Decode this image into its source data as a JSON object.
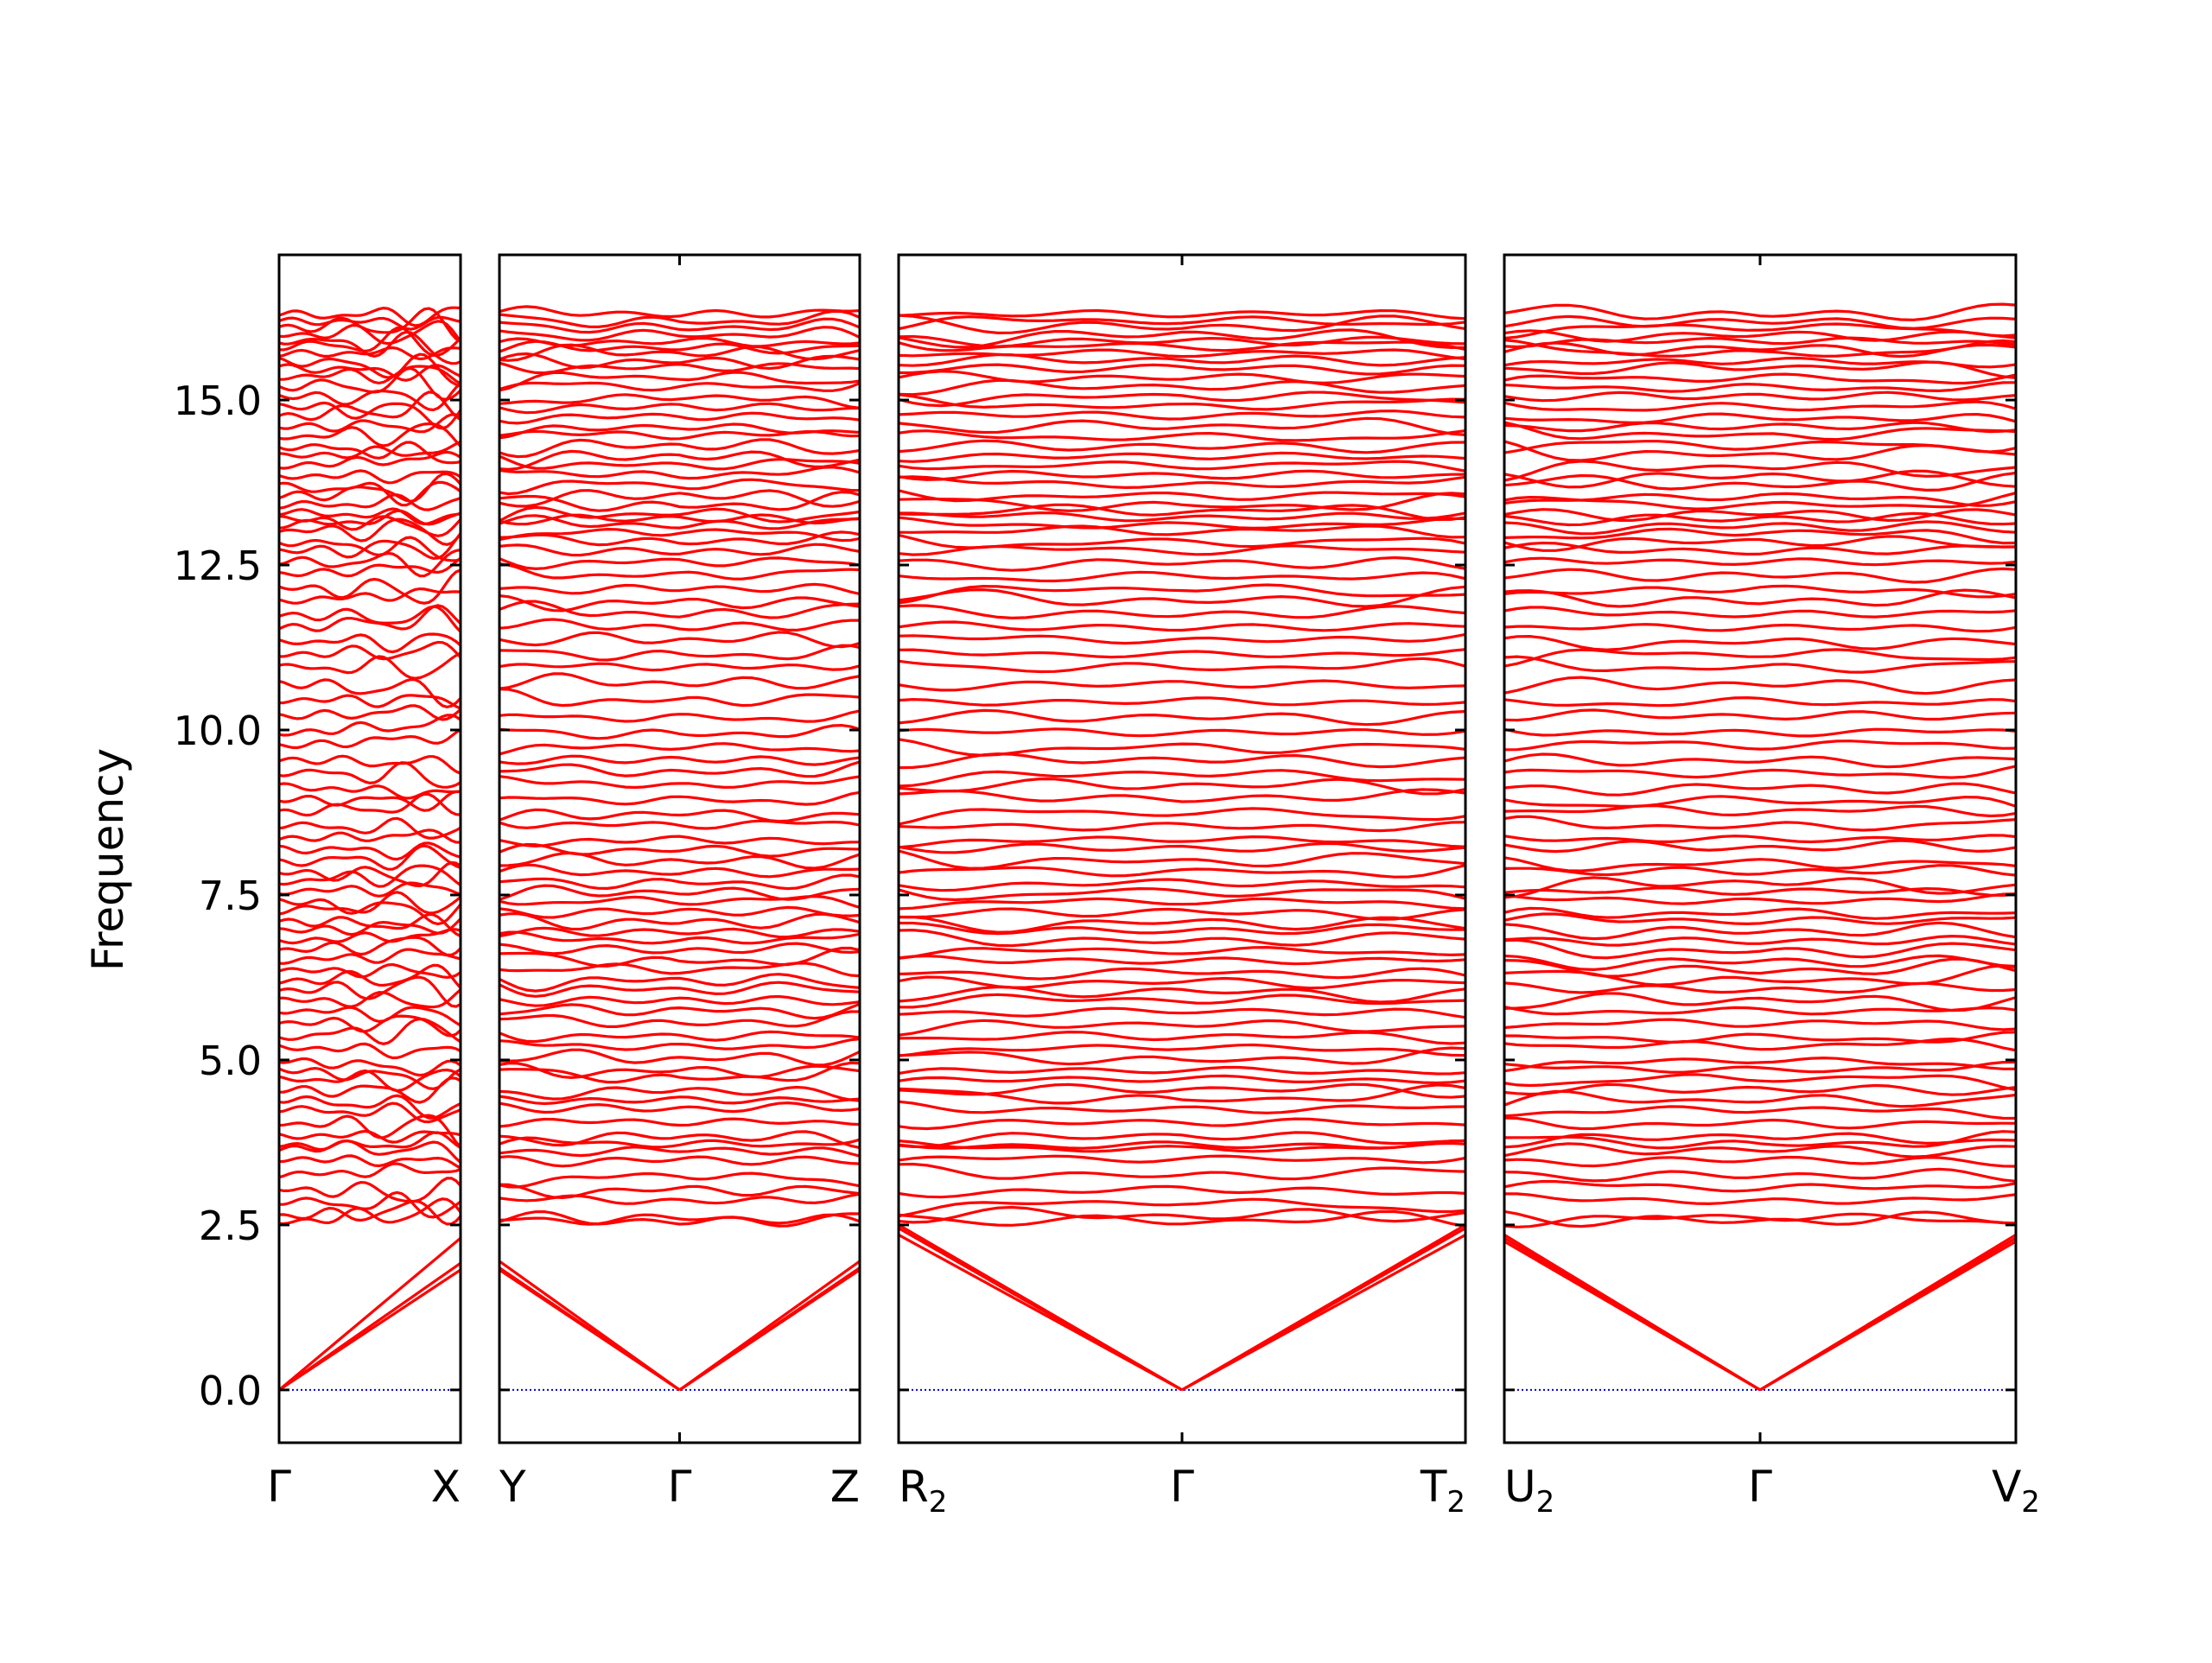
{
  "chart_data": {
    "type": "line",
    "title": "",
    "ylabel": "Frequency",
    "ylim": [
      -0.8,
      17.2
    ],
    "yticks": [
      "0.0",
      "2.5",
      "5.0",
      "7.5",
      "10.0",
      "12.5",
      "15.0"
    ],
    "ytick_values": [
      0,
      2.5,
      5,
      7.5,
      10,
      12.5,
      15
    ],
    "band_color": "#ff0000",
    "zero_line_color": "#0000cc",
    "panels": [
      {
        "id": "panel-1",
        "path": [
          "Γ",
          "X"
        ],
        "gamma_index": 0,
        "x_tick_labels": [
          {
            "text": "Γ",
            "sub": ""
          },
          {
            "text": "X",
            "sub": ""
          }
        ],
        "acoustic_end": [
          1.78,
          1.82,
          1.92
        ],
        "acoustic_end_alt": [
          2.3,
          1.75,
          1.9
        ]
      },
      {
        "id": "panel-2",
        "path": [
          "Y",
          "Γ",
          "Z"
        ],
        "gamma_index": 1,
        "x_tick_labels": [
          {
            "text": "Y",
            "sub": ""
          },
          {
            "text": "Γ",
            "sub": ""
          },
          {
            "text": "Z",
            "sub": ""
          }
        ],
        "acoustic_end": [
          1.82,
          1.85,
          1.95
        ]
      },
      {
        "id": "panel-3",
        "path": [
          "R",
          "Γ",
          "T"
        ],
        "gamma_index": 1,
        "x_tick_labels": [
          {
            "text": "R",
            "sub": "2"
          },
          {
            "text": "Γ",
            "sub": ""
          },
          {
            "text": "T",
            "sub": "2"
          }
        ],
        "acoustic_end": [
          2.45,
          2.5,
          2.35
        ]
      },
      {
        "id": "panel-4",
        "path": [
          "U",
          "Γ",
          "V"
        ],
        "gamma_index": 1,
        "x_tick_labels": [
          {
            "text": "U",
            "sub": "2"
          },
          {
            "text": "Γ",
            "sub": ""
          },
          {
            "text": "V",
            "sub": "2"
          }
        ],
        "acoustic_end": [
          2.25,
          2.3,
          2.35
        ]
      }
    ],
    "optical_bands_at_gamma": [
      2.55,
      2.62,
      2.85,
      3.05,
      3.25,
      3.5,
      3.65,
      3.72,
      3.85,
      4.05,
      4.25,
      4.4,
      4.55,
      4.72,
      4.85,
      5.0,
      5.2,
      5.35,
      5.55,
      5.75,
      5.9,
      6.05,
      6.2,
      6.35,
      6.5,
      6.65,
      6.8,
      6.95,
      7.1,
      7.25,
      7.4,
      7.55,
      7.7,
      7.85,
      8.0,
      8.2,
      8.35,
      8.55,
      8.75,
      8.95,
      9.15,
      9.35,
      9.55,
      9.75,
      9.95,
      10.2,
      10.45,
      10.7,
      10.95,
      11.15,
      11.35,
      11.55,
      11.75,
      11.95,
      12.15,
      12.35,
      12.55,
      12.7,
      12.85,
      13.0,
      13.1,
      13.2,
      13.3,
      13.4,
      13.55,
      13.7,
      13.85,
      14.0,
      14.15,
      14.3,
      14.45,
      14.6,
      14.75,
      14.9,
      15.05,
      15.2,
      15.35,
      15.5,
      15.6,
      15.7,
      15.8,
      15.9,
      16.0,
      16.1,
      16.2,
      16.3
    ]
  }
}
